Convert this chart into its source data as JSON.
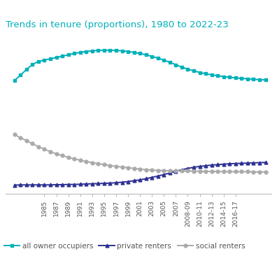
{
  "title": "Trends in tenure (proportions), 1980 to 2022-23",
  "title_color": "#00B0B9",
  "background_color": "#ffffff",
  "owner_occupiers": {
    "label": "all owner occupiers",
    "color": "#00B0B9",
    "marker": "s",
    "markersize": 3.5,
    "linewidth": 1.4,
    "values": [
      0.565,
      0.59,
      0.615,
      0.638,
      0.652,
      0.658,
      0.664,
      0.67,
      0.676,
      0.682,
      0.688,
      0.693,
      0.697,
      0.7,
      0.702,
      0.703,
      0.703,
      0.702,
      0.7,
      0.697,
      0.693,
      0.688,
      0.682,
      0.675,
      0.667,
      0.658,
      0.648,
      0.637,
      0.626,
      0.617,
      0.609,
      0.602,
      0.596,
      0.591,
      0.587,
      0.583,
      0.58,
      0.577,
      0.575,
      0.573,
      0.571,
      0.569,
      0.568
    ]
  },
  "private_renters": {
    "label": "private renters",
    "color": "#2E3192",
    "marker": "^",
    "markersize": 3.5,
    "linewidth": 1.4,
    "values": [
      0.09,
      0.091,
      0.091,
      0.091,
      0.091,
      0.091,
      0.091,
      0.092,
      0.092,
      0.093,
      0.093,
      0.094,
      0.095,
      0.096,
      0.097,
      0.098,
      0.099,
      0.101,
      0.103,
      0.106,
      0.11,
      0.114,
      0.119,
      0.125,
      0.131,
      0.138,
      0.145,
      0.153,
      0.16,
      0.166,
      0.171,
      0.175,
      0.178,
      0.181,
      0.183,
      0.185,
      0.187,
      0.188,
      0.189,
      0.19,
      0.191,
      0.192,
      0.193
    ]
  },
  "social_renters": {
    "label": "social renters",
    "color": "#AAAAAA",
    "marker": "o",
    "markersize": 3.5,
    "linewidth": 1.4,
    "values": [
      0.32,
      0.305,
      0.292,
      0.278,
      0.265,
      0.253,
      0.242,
      0.232,
      0.224,
      0.216,
      0.209,
      0.203,
      0.197,
      0.192,
      0.187,
      0.183,
      0.179,
      0.175,
      0.172,
      0.169,
      0.166,
      0.163,
      0.16,
      0.158,
      0.157,
      0.156,
      0.155,
      0.155,
      0.154,
      0.154,
      0.153,
      0.153,
      0.152,
      0.152,
      0.152,
      0.151,
      0.151,
      0.151,
      0.151,
      0.151,
      0.15,
      0.15,
      0.15
    ]
  },
  "n_points": 43,
  "tick_positions": [
    5,
    7,
    9,
    11,
    13,
    15,
    17,
    19,
    21,
    23,
    25,
    27,
    29,
    31,
    33,
    35,
    37
  ],
  "tick_labels": [
    "1985",
    "1987",
    "1989",
    "1991",
    "1993",
    "1995",
    "1997",
    "1999",
    "2001",
    "2003",
    "2005",
    "2007",
    "2008-09",
    "2010-11",
    "2012-13",
    "2014-15",
    "2016-17"
  ],
  "ylim": [
    0.05,
    0.78
  ],
  "xlim": [
    -1.5,
    43.0
  ],
  "legend_ncol": 3,
  "legend_fontsize": 7.5,
  "title_fontsize": 9.5,
  "tick_fontsize": 6.5,
  "figsize": [
    3.96,
    3.96
  ],
  "dpi": 100
}
